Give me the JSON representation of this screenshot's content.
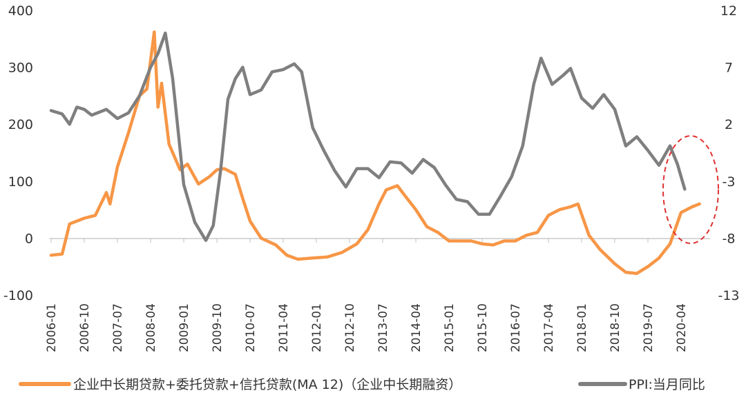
{
  "chart_data": {
    "type": "line",
    "x_ticks": [
      "2006-01",
      "2006-10",
      "2007-07",
      "2008-04",
      "2009-01",
      "2009-10",
      "2010-07",
      "2011-04",
      "2012-01",
      "2012-10",
      "2013-07",
      "2014-04",
      "2015-01",
      "2015-10",
      "2016-07",
      "2017-04",
      "2018-01",
      "2018-10",
      "2019-07",
      "2020-04"
    ],
    "y_left": {
      "min": -100,
      "max": 400,
      "ticks": [
        "-100",
        "0",
        "100",
        "200",
        "300",
        "400"
      ]
    },
    "y_right": {
      "min": -13,
      "max": 12,
      "ticks": [
        "-13",
        "-8",
        "-3",
        "2",
        "7",
        "12"
      ]
    },
    "legend_position": "bottom",
    "series": [
      {
        "name": "企业中长期贷款+委托贷款+信托贷款(MA 12)（企业中长期融资）",
        "axis": "left",
        "color": "#F79646",
        "points": [
          [
            "2006-01",
            -30
          ],
          [
            "2006-04",
            -28
          ],
          [
            "2006-06",
            25
          ],
          [
            "2006-10",
            35
          ],
          [
            "2007-01",
            40
          ],
          [
            "2007-04",
            80
          ],
          [
            "2007-05",
            60
          ],
          [
            "2007-07",
            125
          ],
          [
            "2007-10",
            185
          ],
          [
            "2008-01",
            250
          ],
          [
            "2008-03",
            262
          ],
          [
            "2008-05",
            362
          ],
          [
            "2008-06",
            230
          ],
          [
            "2008-07",
            272
          ],
          [
            "2008-09",
            165
          ],
          [
            "2008-12",
            120
          ],
          [
            "2009-02",
            130
          ],
          [
            "2009-05",
            95
          ],
          [
            "2009-08",
            108
          ],
          [
            "2009-10",
            120
          ],
          [
            "2009-12",
            122
          ],
          [
            "2010-03",
            112
          ],
          [
            "2010-05",
            70
          ],
          [
            "2010-07",
            30
          ],
          [
            "2010-10",
            0
          ],
          [
            "2011-02",
            -12
          ],
          [
            "2011-05",
            -30
          ],
          [
            "2011-08",
            -37
          ],
          [
            "2011-12",
            -35
          ],
          [
            "2012-04",
            -33
          ],
          [
            "2012-08",
            -25
          ],
          [
            "2012-12",
            -10
          ],
          [
            "2013-03",
            15
          ],
          [
            "2013-06",
            60
          ],
          [
            "2013-08",
            85
          ],
          [
            "2013-11",
            92
          ],
          [
            "2014-01",
            75
          ],
          [
            "2014-04",
            50
          ],
          [
            "2014-07",
            20
          ],
          [
            "2014-10",
            10
          ],
          [
            "2015-01",
            -5
          ],
          [
            "2015-04",
            -5
          ],
          [
            "2015-07",
            -5
          ],
          [
            "2015-10",
            -10
          ],
          [
            "2016-01",
            -12
          ],
          [
            "2016-04",
            -5
          ],
          [
            "2016-07",
            -5
          ],
          [
            "2016-10",
            5
          ],
          [
            "2017-01",
            10
          ],
          [
            "2017-04",
            40
          ],
          [
            "2017-07",
            50
          ],
          [
            "2017-10",
            55
          ],
          [
            "2017-12",
            60
          ],
          [
            "2018-03",
            5
          ],
          [
            "2018-06",
            -20
          ],
          [
            "2018-10",
            -45
          ],
          [
            "2019-01",
            -60
          ],
          [
            "2019-04",
            -62
          ],
          [
            "2019-07",
            -50
          ],
          [
            "2019-10",
            -35
          ],
          [
            "2020-01",
            -10
          ],
          [
            "2020-04",
            45
          ],
          [
            "2020-07",
            55
          ],
          [
            "2020-09",
            60
          ]
        ]
      },
      {
        "name": "PPI:当月同比",
        "axis": "right",
        "color": "#7F7F7F",
        "points": [
          [
            "2006-01",
            3.2
          ],
          [
            "2006-04",
            2.9
          ],
          [
            "2006-06",
            2.0
          ],
          [
            "2006-08",
            3.5
          ],
          [
            "2006-10",
            3.3
          ],
          [
            "2006-12",
            2.8
          ],
          [
            "2007-04",
            3.3
          ],
          [
            "2007-07",
            2.5
          ],
          [
            "2007-10",
            3.0
          ],
          [
            "2008-01",
            4.5
          ],
          [
            "2008-04",
            7.0
          ],
          [
            "2008-06",
            8.2
          ],
          [
            "2008-08",
            10.0
          ],
          [
            "2008-10",
            6.0
          ],
          [
            "2009-01",
            -3.3
          ],
          [
            "2009-04",
            -6.6
          ],
          [
            "2009-07",
            -8.2
          ],
          [
            "2009-09",
            -6.9
          ],
          [
            "2009-11",
            -2.1
          ],
          [
            "2010-01",
            4.2
          ],
          [
            "2010-03",
            6.0
          ],
          [
            "2010-05",
            7.0
          ],
          [
            "2010-07",
            4.6
          ],
          [
            "2010-10",
            5.0
          ],
          [
            "2011-01",
            6.6
          ],
          [
            "2011-04",
            6.8
          ],
          [
            "2011-07",
            7.3
          ],
          [
            "2011-09",
            6.6
          ],
          [
            "2011-12",
            1.7
          ],
          [
            "2012-03",
            -0.3
          ],
          [
            "2012-06",
            -2.1
          ],
          [
            "2012-09",
            -3.5
          ],
          [
            "2012-12",
            -1.9
          ],
          [
            "2013-03",
            -1.9
          ],
          [
            "2013-06",
            -2.7
          ],
          [
            "2013-09",
            -1.3
          ],
          [
            "2013-12",
            -1.4
          ],
          [
            "2014-03",
            -2.3
          ],
          [
            "2014-06",
            -1.1
          ],
          [
            "2014-09",
            -1.8
          ],
          [
            "2014-12",
            -3.3
          ],
          [
            "2015-03",
            -4.6
          ],
          [
            "2015-06",
            -4.8
          ],
          [
            "2015-09",
            -5.9
          ],
          [
            "2015-12",
            -5.9
          ],
          [
            "2016-03",
            -4.3
          ],
          [
            "2016-06",
            -2.6
          ],
          [
            "2016-09",
            0.1
          ],
          [
            "2016-12",
            5.5
          ],
          [
            "2017-02",
            7.8
          ],
          [
            "2017-05",
            5.5
          ],
          [
            "2017-08",
            6.3
          ],
          [
            "2017-10",
            6.9
          ],
          [
            "2018-01",
            4.3
          ],
          [
            "2018-04",
            3.4
          ],
          [
            "2018-07",
            4.6
          ],
          [
            "2018-10",
            3.3
          ],
          [
            "2019-01",
            0.1
          ],
          [
            "2019-04",
            0.9
          ],
          [
            "2019-07",
            -0.3
          ],
          [
            "2019-10",
            -1.6
          ],
          [
            "2020-01",
            0.1
          ],
          [
            "2020-03",
            -1.5
          ],
          [
            "2020-05",
            -3.7
          ]
        ]
      }
    ],
    "annotation": {
      "type": "dashed-ellipse",
      "color": "#E03030",
      "around": "2020 values"
    }
  }
}
